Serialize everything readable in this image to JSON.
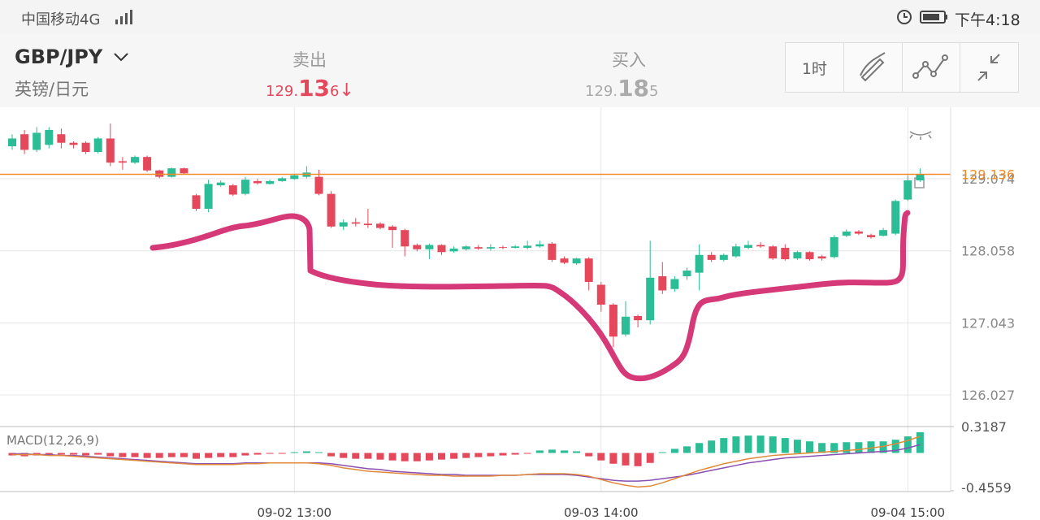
{
  "status_bar": {
    "carrier": "中国移动4G",
    "time": "下午4:18"
  },
  "header": {
    "symbol": "GBP/JPY",
    "symbol_name": "英镑/日元",
    "sell": {
      "label": "卖出",
      "price_parts": [
        "129.",
        "13",
        "6"
      ],
      "arrow": "↓"
    },
    "buy": {
      "label": "买入",
      "price_parts": [
        "129.",
        "18",
        "5"
      ]
    },
    "toolbar": {
      "interval": "1时"
    }
  },
  "chart_data": [
    {
      "type": "candlestick",
      "categories": [
        null,
        null,
        null,
        null,
        null,
        null,
        null,
        null,
        null,
        null,
        null,
        null,
        null,
        null,
        null,
        null,
        null,
        null,
        null,
        null,
        null,
        null,
        null,
        "09-02 13:00",
        null,
        null,
        null,
        null,
        null,
        null,
        null,
        null,
        null,
        null,
        null,
        null,
        null,
        null,
        null,
        null,
        null,
        null,
        null,
        null,
        null,
        null,
        null,
        null,
        "09-03 14:00",
        null,
        null,
        null,
        null,
        null,
        null,
        null,
        null,
        null,
        null,
        null,
        null,
        null,
        null,
        null,
        null,
        null,
        null,
        null,
        null,
        null,
        null,
        null,
        null,
        "09-04 15:00",
        null
      ],
      "open": [
        129.53,
        129.7,
        129.48,
        129.55,
        129.7,
        129.58,
        129.58,
        129.45,
        129.64,
        129.32,
        129.3,
        129.38,
        129.19,
        129.1,
        129.22,
        128.84,
        128.65,
        128.98,
        128.98,
        128.86,
        129.04,
        129.0,
        129.04,
        129.07,
        129.1,
        129.1,
        128.86,
        128.4,
        128.46,
        128.44,
        128.44,
        128.4,
        128.35,
        128.14,
        128.08,
        128.14,
        128.05,
        128.08,
        128.11,
        128.09,
        128.11,
        128.1,
        128.1,
        128.12,
        128.16,
        127.95,
        127.88,
        127.95,
        127.58,
        127.3,
        126.88,
        127.14,
        127.08,
        127.7,
        127.52,
        127.7,
        127.75,
        128.0,
        127.93,
        127.98,
        128.1,
        128.14,
        128.12,
        128.1,
        127.95,
        128.04,
        127.98,
        127.97,
        128.27,
        128.33,
        128.28,
        128.27,
        128.3,
        128.78,
        129.05
      ],
      "high": [
        129.7,
        129.76,
        129.8,
        129.8,
        129.78,
        129.6,
        129.6,
        129.66,
        129.85,
        129.38,
        129.4,
        129.4,
        129.2,
        129.23,
        129.23,
        128.86,
        129.06,
        129.05,
        129.0,
        129.1,
        129.07,
        129.06,
        129.1,
        129.14,
        129.25,
        129.2,
        128.9,
        128.5,
        128.52,
        128.65,
        128.46,
        128.42,
        128.37,
        128.16,
        128.16,
        128.15,
        128.12,
        128.14,
        128.14,
        128.15,
        128.13,
        128.14,
        128.2,
        128.2,
        128.18,
        127.98,
        127.96,
        127.97,
        127.62,
        127.32,
        127.35,
        127.16,
        128.2,
        127.9,
        127.7,
        127.82,
        128.15,
        128.04,
        128.02,
        128.16,
        128.2,
        128.18,
        128.14,
        128.15,
        128.06,
        128.05,
        128.0,
        128.28,
        128.36,
        128.35,
        128.3,
        128.38,
        128.78,
        129.12,
        129.22
      ],
      "low": [
        129.48,
        129.42,
        129.45,
        129.5,
        129.5,
        129.5,
        129.42,
        129.43,
        129.25,
        129.2,
        129.28,
        129.17,
        129.08,
        129.09,
        129.14,
        128.62,
        128.6,
        128.96,
        128.83,
        128.84,
        128.99,
        128.99,
        129.03,
        129.06,
        129.08,
        128.84,
        128.38,
        128.35,
        128.4,
        128.38,
        128.36,
        128.1,
        127.98,
        128.05,
        127.94,
        128.0,
        128.03,
        128.06,
        128.07,
        128.06,
        128.08,
        128.09,
        128.08,
        128.1,
        127.9,
        127.87,
        127.86,
        127.5,
        127.2,
        126.7,
        126.85,
        126.98,
        127.02,
        127.45,
        127.48,
        127.65,
        127.5,
        127.9,
        127.91,
        127.96,
        128.08,
        128.1,
        127.93,
        127.92,
        127.93,
        127.92,
        127.92,
        127.95,
        128.25,
        128.28,
        128.23,
        128.26,
        128.28,
        128.76,
        129.03
      ],
      "close": [
        129.64,
        129.48,
        129.72,
        129.76,
        129.58,
        129.55,
        129.45,
        129.64,
        129.3,
        129.3,
        129.38,
        129.19,
        129.1,
        129.22,
        129.15,
        128.65,
        129.0,
        129.02,
        128.85,
        129.06,
        129.01,
        129.04,
        129.08,
        129.12,
        129.16,
        128.86,
        128.4,
        128.46,
        128.44,
        128.42,
        128.38,
        128.35,
        128.12,
        128.08,
        128.14,
        128.04,
        128.09,
        128.12,
        128.09,
        128.11,
        128.1,
        128.12,
        128.13,
        128.15,
        127.93,
        127.89,
        127.95,
        127.62,
        127.3,
        126.85,
        127.13,
        127.08,
        127.68,
        127.5,
        127.66,
        127.78,
        128.0,
        127.93,
        128.0,
        128.12,
        128.14,
        128.12,
        127.95,
        127.94,
        128.04,
        127.94,
        127.95,
        128.25,
        128.33,
        128.3,
        128.25,
        128.35,
        128.76,
        129.05,
        129.136
      ],
      "up_color": "#2bbd95",
      "down_color": "#e5485b",
      "ylim": [
        125.64,
        130.08
      ],
      "yticks": [
        129.074,
        128.058,
        127.043,
        126.027
      ],
      "grid": true,
      "current_price": 129.136,
      "current_price_color": "#f08a24"
    },
    {
      "type": "macd",
      "title": "MACD(12,26,9)",
      "values": [
        -0.03,
        -0.04,
        -0.03,
        -0.03,
        -0.02,
        -0.02,
        -0.03,
        -0.02,
        -0.04,
        -0.05,
        -0.05,
        -0.06,
        -0.06,
        -0.05,
        -0.05,
        -0.07,
        -0.06,
        -0.05,
        -0.05,
        -0.03,
        -0.02,
        -0.01,
        -0.01,
        0.01,
        0.02,
        0.01,
        -0.04,
        -0.06,
        -0.07,
        -0.07,
        -0.08,
        -0.09,
        -0.1,
        -0.1,
        -0.09,
        -0.08,
        -0.07,
        -0.06,
        -0.05,
        -0.04,
        -0.03,
        -0.02,
        -0.01,
        0.03,
        0.04,
        0.03,
        0.02,
        -0.04,
        -0.09,
        -0.13,
        -0.15,
        -0.16,
        -0.12,
        0.01,
        0.05,
        0.08,
        0.12,
        0.15,
        0.18,
        0.2,
        0.21,
        0.21,
        0.2,
        0.18,
        0.16,
        0.14,
        0.12,
        0.12,
        0.13,
        0.13,
        0.14,
        0.14,
        0.16,
        0.2,
        0.25
      ],
      "up_color": "#2bbd95",
      "down_color": "#e5485b",
      "series": [
        {
          "color": "#8a4fb0",
          "values": [
            -0.01,
            -0.01,
            -0.02,
            -0.02,
            -0.03,
            -0.03,
            -0.04,
            -0.05,
            -0.06,
            -0.07,
            -0.08,
            -0.09,
            -0.1,
            -0.11,
            -0.12,
            -0.13,
            -0.13,
            -0.13,
            -0.13,
            -0.12,
            -0.12,
            -0.12,
            -0.12,
            -0.12,
            -0.12,
            -0.12,
            -0.13,
            -0.15,
            -0.17,
            -0.19,
            -0.2,
            -0.22,
            -0.23,
            -0.24,
            -0.25,
            -0.26,
            -0.26,
            -0.27,
            -0.27,
            -0.27,
            -0.27,
            -0.27,
            -0.26,
            -0.26,
            -0.26,
            -0.26,
            -0.27,
            -0.29,
            -0.31,
            -0.33,
            -0.34,
            -0.34,
            -0.33,
            -0.31,
            -0.29,
            -0.27,
            -0.24,
            -0.21,
            -0.18,
            -0.15,
            -0.12,
            -0.1,
            -0.08,
            -0.06,
            -0.05,
            -0.04,
            -0.03,
            -0.02,
            -0.01,
            0,
            0.01,
            0.02,
            0.03,
            0.06,
            0.1
          ]
        },
        {
          "color": "#e08a3a",
          "values": [
            -0.02,
            -0.02,
            -0.02,
            -0.03,
            -0.03,
            -0.04,
            -0.05,
            -0.06,
            -0.07,
            -0.08,
            -0.09,
            -0.1,
            -0.11,
            -0.12,
            -0.13,
            -0.14,
            -0.14,
            -0.14,
            -0.14,
            -0.13,
            -0.13,
            -0.12,
            -0.12,
            -0.12,
            -0.12,
            -0.13,
            -0.15,
            -0.18,
            -0.2,
            -0.22,
            -0.23,
            -0.24,
            -0.25,
            -0.26,
            -0.27,
            -0.27,
            -0.28,
            -0.28,
            -0.28,
            -0.28,
            -0.27,
            -0.27,
            -0.26,
            -0.25,
            -0.25,
            -0.25,
            -0.26,
            -0.28,
            -0.32,
            -0.36,
            -0.39,
            -0.41,
            -0.4,
            -0.36,
            -0.31,
            -0.26,
            -0.21,
            -0.17,
            -0.13,
            -0.1,
            -0.07,
            -0.05,
            -0.03,
            -0.02,
            -0.01,
            0,
            0.01,
            0.02,
            0.03,
            0.04,
            0.06,
            0.08,
            0.11,
            0.15,
            0.2
          ]
        }
      ],
      "ylim": [
        -0.4559,
        0.3187
      ],
      "yticks": [
        0.3187,
        -0.4559
      ]
    }
  ]
}
